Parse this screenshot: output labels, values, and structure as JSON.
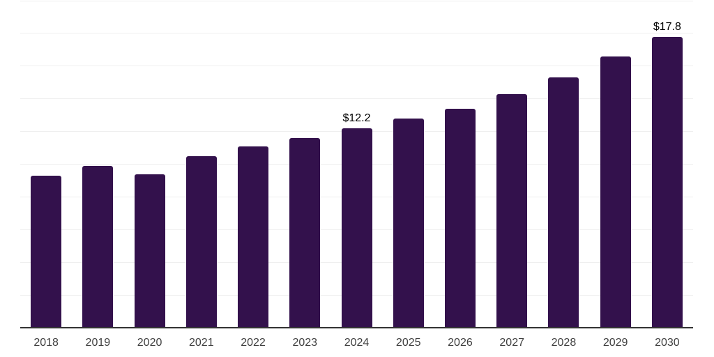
{
  "chart_data": {
    "type": "bar",
    "title": "",
    "xlabel": "",
    "ylabel": "",
    "categories": [
      "2018",
      "2019",
      "2020",
      "2021",
      "2022",
      "2023",
      "2024",
      "2025",
      "2026",
      "2027",
      "2028",
      "2029",
      "2030"
    ],
    "values": [
      9.3,
      9.9,
      9.4,
      10.5,
      11.1,
      11.6,
      12.2,
      12.8,
      13.4,
      14.3,
      15.3,
      16.6,
      17.8
    ],
    "value_labels": [
      "",
      "",
      "",
      "",
      "",
      "",
      "$12.2",
      "",
      "",
      "",
      "",
      "",
      "$17.8"
    ],
    "ylim": [
      0,
      20
    ],
    "grid_step": 2,
    "grid": true,
    "legend_position": "none",
    "y_tick_labels_shown": false
  },
  "style": {
    "bar_color": "#33114c",
    "gridline_color": "#efefef",
    "axis_color": "#333333",
    "tick_label_color": "#3f3f3f",
    "value_label_color": "#000000",
    "background_color": "#ffffff"
  }
}
